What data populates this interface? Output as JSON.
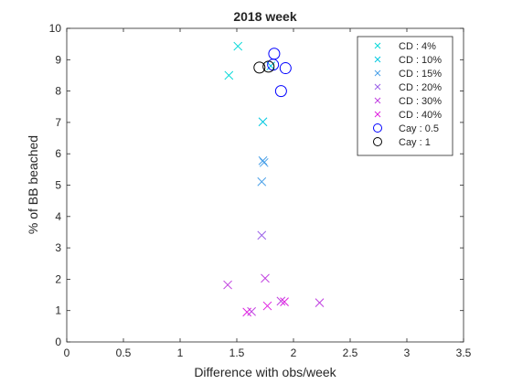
{
  "chart_data": {
    "type": "scatter",
    "title": "2018 week",
    "xlabel": "Difference with obs/week",
    "ylabel": "% of BB beached",
    "xlim": [
      0,
      3.5
    ],
    "ylim": [
      0,
      10
    ],
    "xticks": [
      {
        "value": 0,
        "label": "0"
      },
      {
        "value": 0.5,
        "label": "0.5"
      },
      {
        "value": 1,
        "label": "1"
      },
      {
        "value": 1.5,
        "label": "1.5"
      },
      {
        "value": 2,
        "label": "2"
      },
      {
        "value": 2.5,
        "label": "2.5"
      },
      {
        "value": 3,
        "label": "3"
      },
      {
        "value": 3.5,
        "label": "3.5"
      }
    ],
    "yticks": [
      {
        "value": 0,
        "label": "0"
      },
      {
        "value": 1,
        "label": "1"
      },
      {
        "value": 2,
        "label": "2"
      },
      {
        "value": 3,
        "label": "3"
      },
      {
        "value": 4,
        "label": "4"
      },
      {
        "value": 5,
        "label": "5"
      },
      {
        "value": 6,
        "label": "6"
      },
      {
        "value": 7,
        "label": "7"
      },
      {
        "value": 8,
        "label": "8"
      },
      {
        "value": 9,
        "label": "9"
      },
      {
        "value": 10,
        "label": "10"
      }
    ],
    "grid": false,
    "legend_position": "top-right",
    "series": [
      {
        "name": "CD : 4%",
        "marker": "x",
        "color": "#00d8d8",
        "points": [
          [
            1.51,
            9.43
          ],
          [
            1.43,
            8.5
          ]
        ]
      },
      {
        "name": "CD : 10%",
        "marker": "x",
        "color": "#00c8e0",
        "points": [
          [
            1.73,
            7.02
          ],
          [
            1.8,
            8.8
          ]
        ]
      },
      {
        "name": "CD : 15%",
        "marker": "x",
        "color": "#4aa0e8",
        "points": [
          [
            1.73,
            5.78
          ],
          [
            1.74,
            5.72
          ],
          [
            1.72,
            5.11
          ]
        ]
      },
      {
        "name": "CD : 20%",
        "marker": "x",
        "color": "#9a60e8",
        "points": [
          [
            1.72,
            3.4
          ]
        ]
      },
      {
        "name": "CD : 30%",
        "marker": "x",
        "color": "#c040e0",
        "points": [
          [
            1.42,
            1.82
          ],
          [
            1.75,
            2.03
          ],
          [
            1.63,
            0.97
          ],
          [
            1.89,
            1.3
          ],
          [
            2.23,
            1.25
          ]
        ]
      },
      {
        "name": "CD : 40%",
        "marker": "x",
        "color": "#e020e0",
        "points": [
          [
            1.59,
            0.95
          ],
          [
            1.77,
            1.15
          ],
          [
            1.92,
            1.28
          ]
        ]
      },
      {
        "name": "Cay : 0.5",
        "marker": "o",
        "color": "#0000ff",
        "points": [
          [
            1.83,
            9.19
          ],
          [
            1.82,
            8.84
          ],
          [
            1.93,
            8.73
          ],
          [
            1.89,
            8.0
          ]
        ]
      },
      {
        "name": "Cay : 1",
        "marker": "o",
        "color": "#000000",
        "points": [
          [
            1.7,
            8.75
          ],
          [
            1.78,
            8.78
          ]
        ]
      }
    ]
  }
}
